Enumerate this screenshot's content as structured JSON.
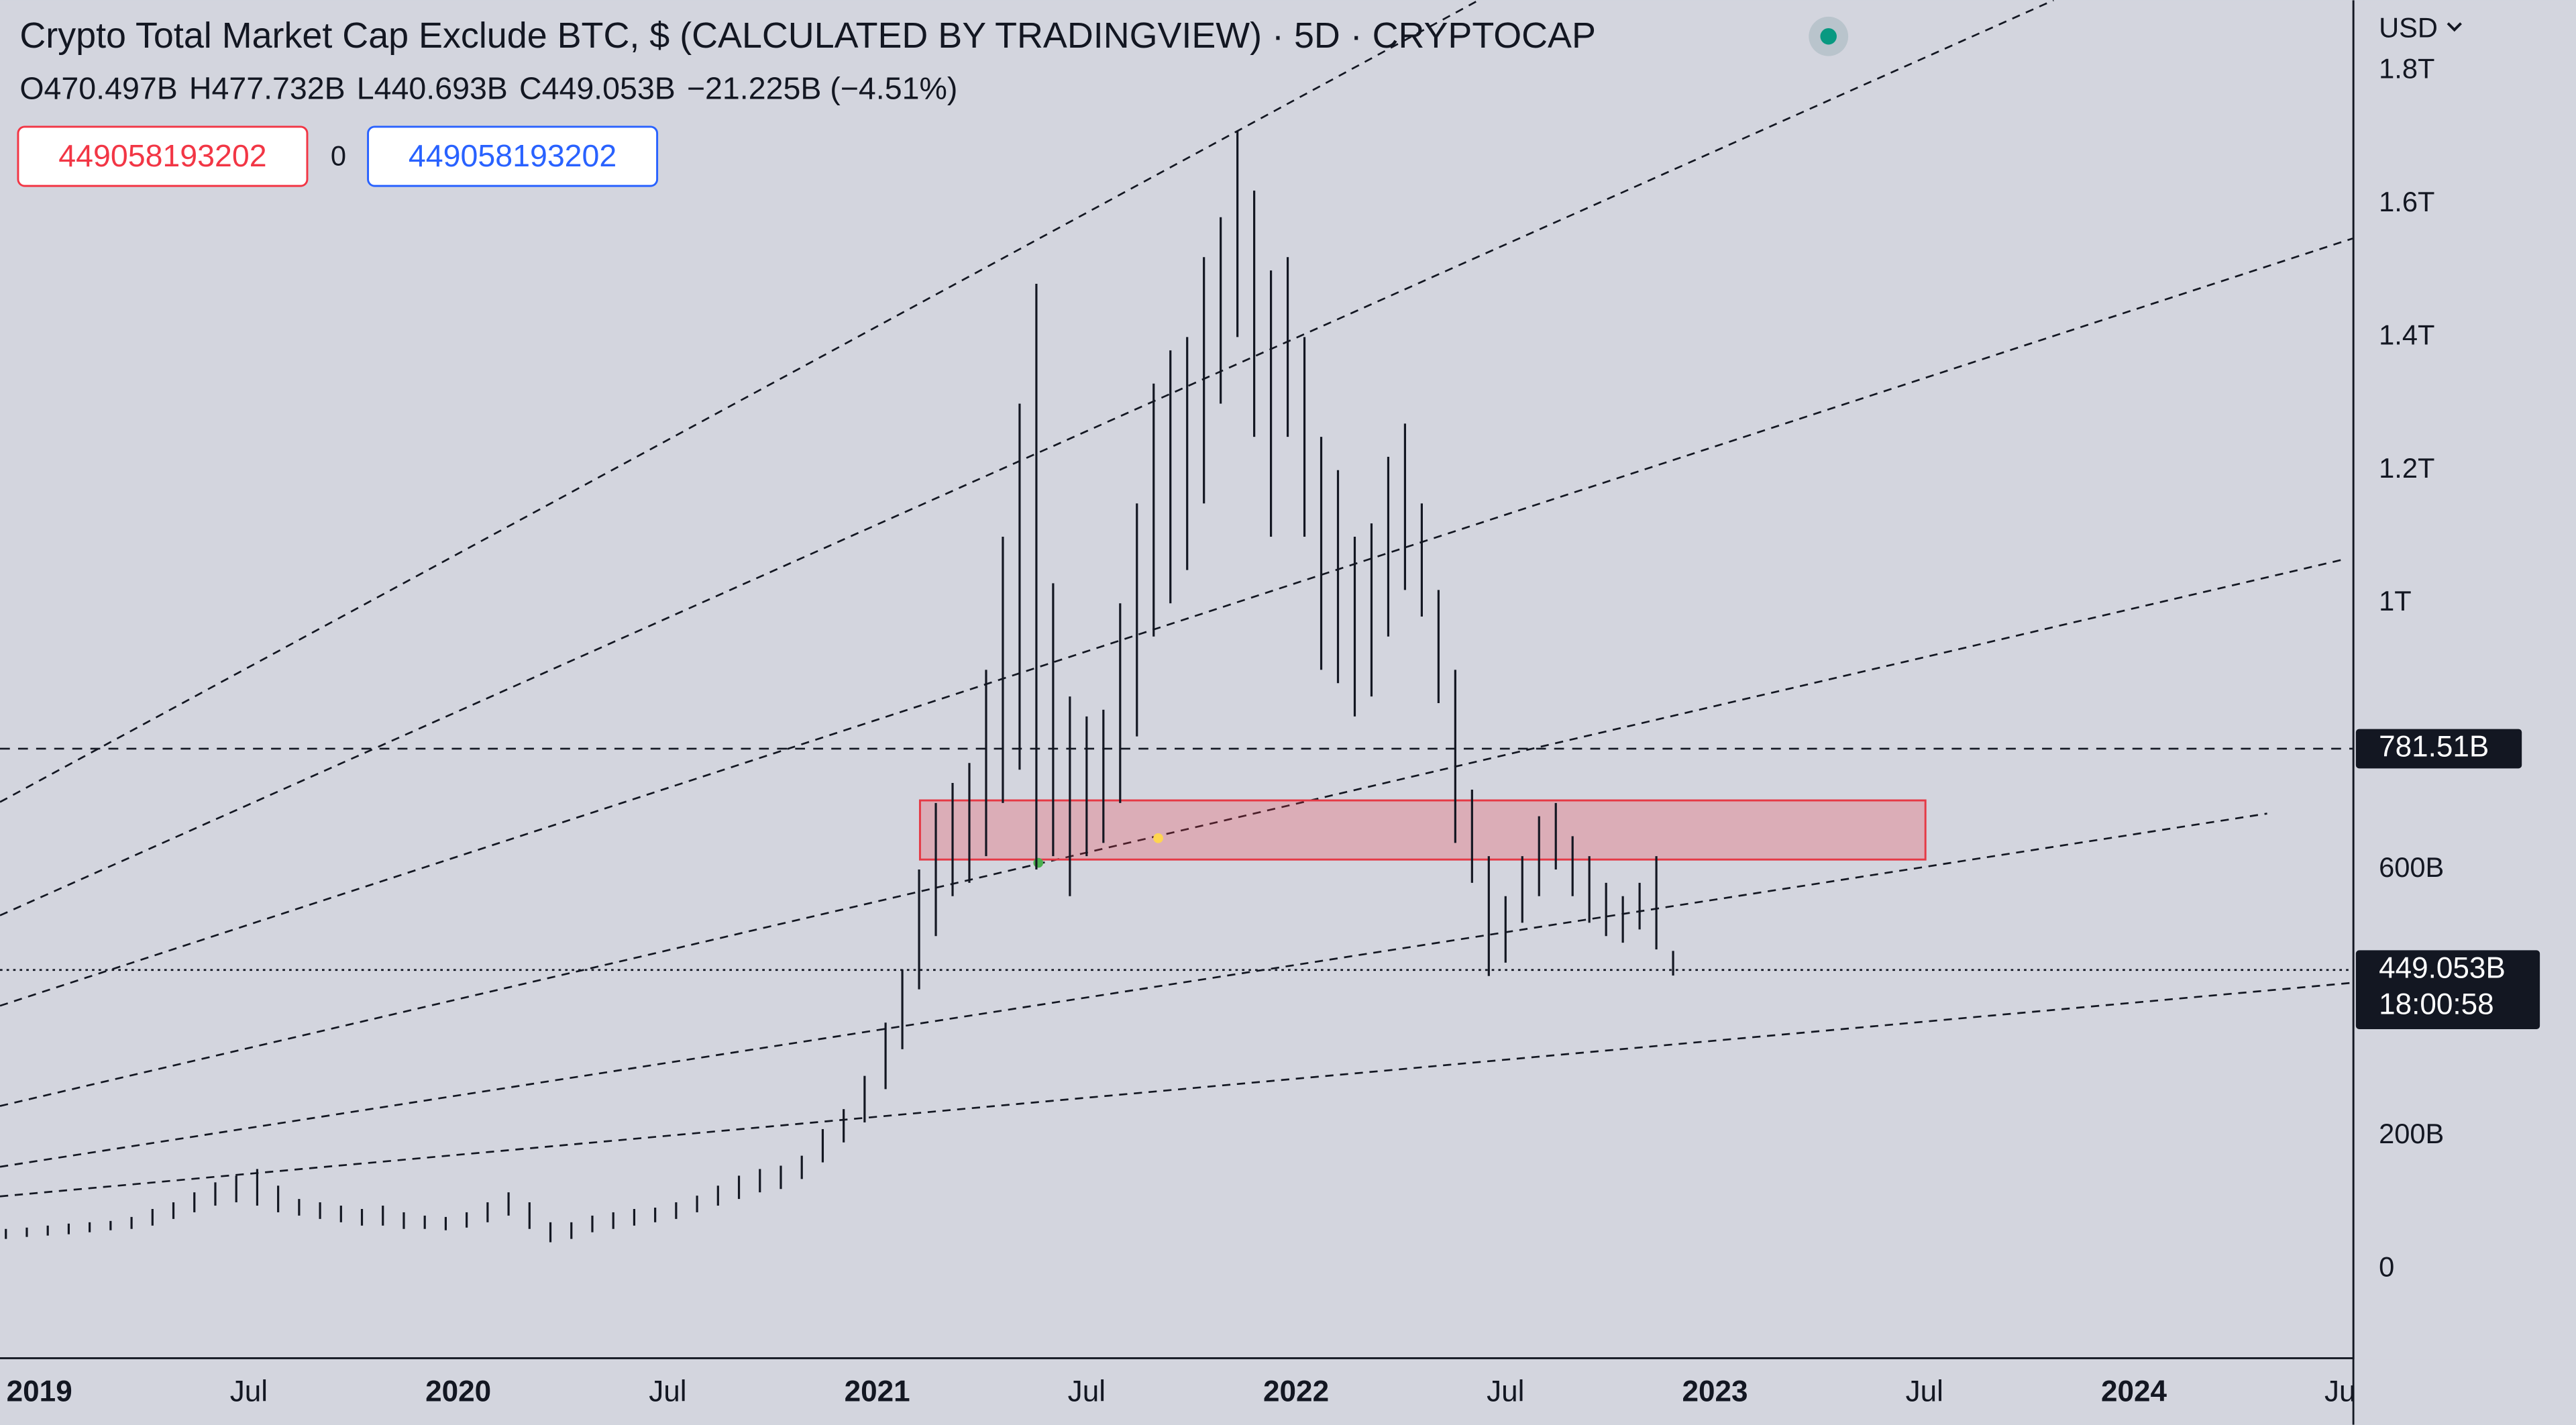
{
  "header": {
    "legend_values": [
      "O470.497B",
      "H477.732B",
      "L440.693B",
      "C449.053B",
      "−21.225B (−4.51%)"
    ],
    "sell_price": "449058193202",
    "spread": "0",
    "buy_price": "449058193202",
    "currency": "USD",
    "countdown": "18:00:58"
  },
  "chart_data": {
    "type": "ohlc",
    "title": "Crypto Total Market Cap Exclude BTC, $ (CALCULATED BY TRADINGVIEW) · 5D · CRYPTOCAP",
    "color": "#131722",
    "x": [
      2018.92,
      2018.97,
      2019.02,
      2019.07,
      2019.12,
      2019.17,
      2019.22,
      2019.27,
      2019.32,
      2019.37,
      2019.42,
      2019.47,
      2019.52,
      2019.57,
      2019.62,
      2019.67,
      2019.72,
      2019.77,
      2019.82,
      2019.87,
      2019.92,
      2019.97,
      2020.02,
      2020.07,
      2020.12,
      2020.17,
      2020.22,
      2020.27,
      2020.32,
      2020.37,
      2020.42,
      2020.47,
      2020.52,
      2020.57,
      2020.62,
      2020.67,
      2020.72,
      2020.77,
      2020.82,
      2020.87,
      2020.92,
      2020.97,
      2021.02,
      2021.06,
      2021.1,
      2021.14,
      2021.18,
      2021.22,
      2021.26,
      2021.3,
      2021.34,
      2021.38,
      2021.42,
      2021.46,
      2021.5,
      2021.54,
      2021.58,
      2021.62,
      2021.66,
      2021.7,
      2021.74,
      2021.78,
      2021.82,
      2021.86,
      2021.9,
      2021.94,
      2021.98,
      2022.02,
      2022.06,
      2022.1,
      2022.14,
      2022.18,
      2022.22,
      2022.26,
      2022.3,
      2022.34,
      2022.38,
      2022.42,
      2022.46,
      2022.5,
      2022.54,
      2022.58,
      2022.62,
      2022.66,
      2022.7,
      2022.74,
      2022.78,
      2022.82,
      2022.86,
      2022.9
    ],
    "high": [
      60,
      62,
      65,
      68,
      70,
      72,
      78,
      90,
      100,
      115,
      130,
      140,
      150,
      125,
      105,
      100,
      95,
      90,
      95,
      85,
      80,
      78,
      85,
      100,
      115,
      100,
      70,
      70,
      80,
      85,
      90,
      92,
      100,
      110,
      125,
      140,
      150,
      155,
      170,
      210,
      240,
      290,
      370,
      450,
      600,
      700,
      730,
      760,
      900,
      1100,
      1300,
      1480,
      1030,
      860,
      830,
      840,
      1000,
      1150,
      1330,
      1380,
      1400,
      1520,
      1580,
      1710,
      1620,
      1500,
      1520,
      1400,
      1250,
      1200,
      1100,
      1120,
      1220,
      1270,
      1150,
      1020,
      900,
      720,
      620,
      560,
      620,
      680,
      700,
      650,
      620,
      580,
      560,
      580,
      620,
      477.732
    ],
    "low": [
      45,
      48,
      50,
      52,
      55,
      58,
      60,
      65,
      75,
      85,
      95,
      100,
      95,
      85,
      80,
      75,
      70,
      65,
      65,
      60,
      60,
      58,
      62,
      70,
      80,
      60,
      40,
      45,
      55,
      60,
      65,
      70,
      75,
      85,
      95,
      105,
      115,
      120,
      135,
      160,
      190,
      220,
      270,
      330,
      420,
      500,
      560,
      580,
      620,
      700,
      750,
      600,
      620,
      560,
      620,
      640,
      700,
      800,
      950,
      1000,
      1050,
      1150,
      1300,
      1400,
      1250,
      1100,
      1250,
      1100,
      900,
      880,
      830,
      860,
      950,
      1020,
      980,
      850,
      640,
      580,
      440,
      460,
      520,
      560,
      600,
      560,
      520,
      500,
      490,
      510,
      480,
      440.693
    ],
    "xlim": [
      2018.906,
      2024.522
    ],
    "xticks": [
      {
        "value": 2019,
        "label": "2019"
      },
      {
        "value": 2019.5,
        "label": "Jul"
      },
      {
        "value": 2020,
        "label": "2020"
      },
      {
        "value": 2020.5,
        "label": "Jul"
      },
      {
        "value": 2021,
        "label": "2021"
      },
      {
        "value": 2021.5,
        "label": "Jul"
      },
      {
        "value": 2022,
        "label": "2022"
      },
      {
        "value": 2022.5,
        "label": "Jul"
      },
      {
        "value": 2023,
        "label": "2023"
      },
      {
        "value": 2023.5,
        "label": "Jul"
      },
      {
        "value": 2024,
        "label": "2024"
      },
      {
        "value": 2024.5,
        "label": "Jul"
      }
    ],
    "ylim": [
      -133,
      1906
    ],
    "yticks": [
      0,
      {
        "value": 200,
        "label": "200B"
      },
      {
        "value": 600,
        "label": "600B"
      },
      {
        "value": 1000,
        "label": "1T"
      },
      {
        "value": 1200,
        "label": "1.2T"
      },
      {
        "value": 1400,
        "label": "1.4T"
      },
      {
        "value": 1600,
        "label": "1.6T"
      },
      {
        "value": 1800,
        "label": "1.8T"
      }
    ],
    "price_lines": [
      {
        "value": 781.51,
        "label": "781.51B"
      },
      {
        "value": 449.053,
        "label": "449.053B"
      }
    ]
  }
}
